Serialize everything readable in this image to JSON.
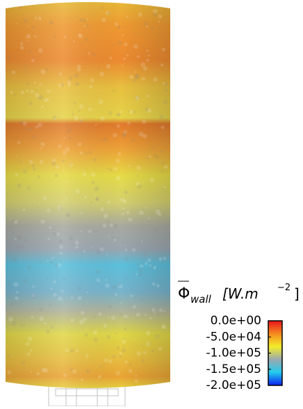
{
  "chart_data": {
    "type": "colorbar",
    "label": {
      "symbol": "Φ",
      "subscript": "wall",
      "unit": "[W.m",
      "exponent": "−2",
      "close": "]"
    },
    "clim": [
      -200000,
      0
    ],
    "ticks": [
      {
        "value": 0,
        "label": "0.0e+00"
      },
      {
        "value": -50000,
        "label": "-5.0e+04"
      },
      {
        "value": -100000,
        "label": "-1.0e+05"
      },
      {
        "value": -150000,
        "label": "-1.5e+05"
      },
      {
        "value": -200000,
        "label": "-2.0e+05"
      }
    ]
  }
}
